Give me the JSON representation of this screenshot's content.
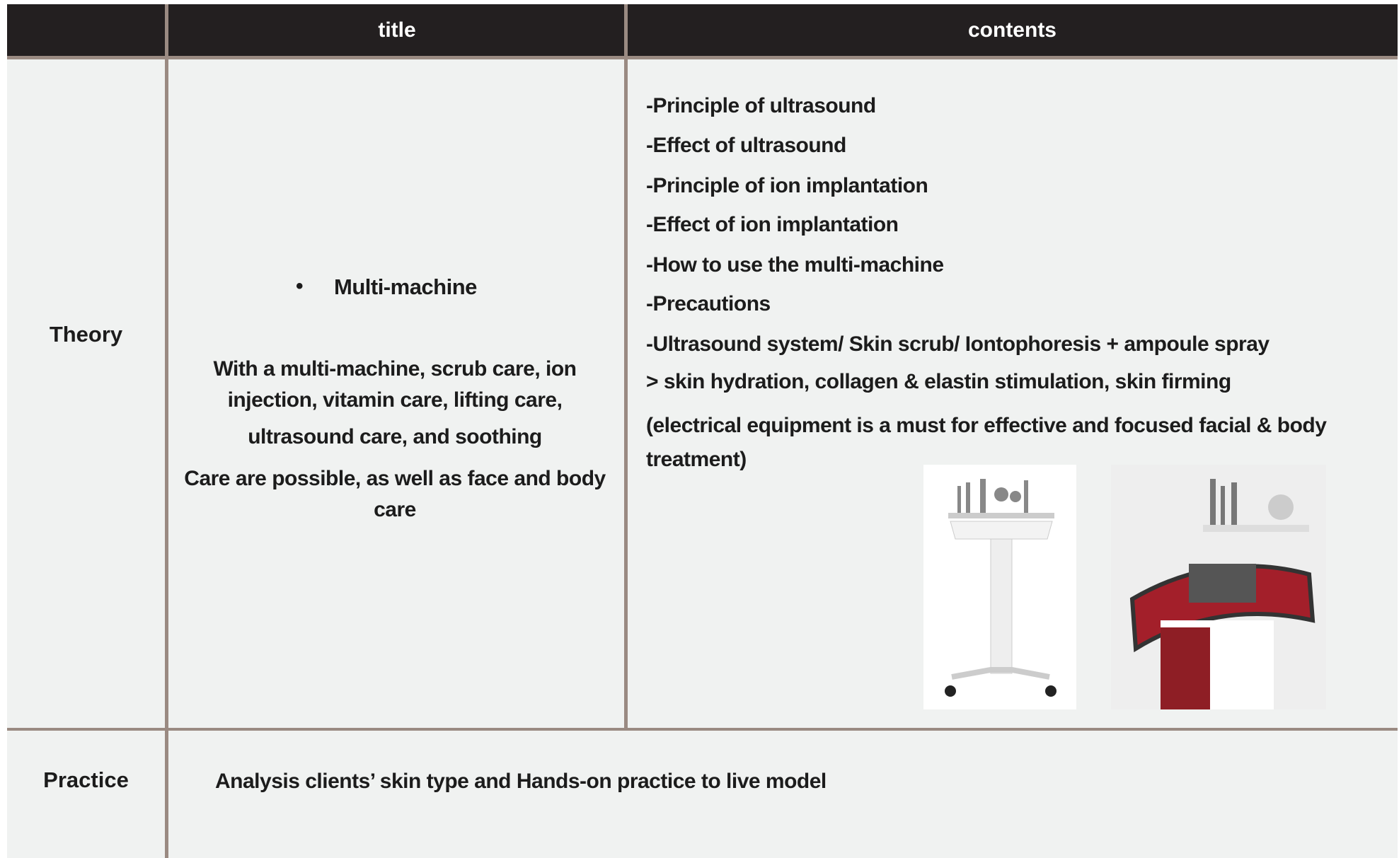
{
  "header": {
    "columns": [
      "title",
      "contents"
    ]
  },
  "rows": [
    {
      "label": "Theory",
      "title": "Multi-machine",
      "description": [
        "With a multi-machine, scrub care, ion injection, vitamin care, lifting care,",
        "ultrasound care, and soothing",
        "Care are possible, as well as face and body care"
      ],
      "contents": [
        "-Principle of ultrasound",
        "-Effect of ultrasound",
        "-Principle of ion implantation",
        "-Effect of ion implantation",
        "-How to use the multi-machine",
        "-Precautions",
        "-Ultrasound system/ Skin scrub/ Iontophoresis + ampoule spray",
        "> skin hydration, collagen & elastin stimulation, skin firming",
        "(electrical equipment is a must for effective and focused facial & body treatment)"
      ]
    },
    {
      "label": "Practice",
      "contents": [
        "Analysis clients’ skin type and Hands-on practice to live model"
      ]
    }
  ]
}
